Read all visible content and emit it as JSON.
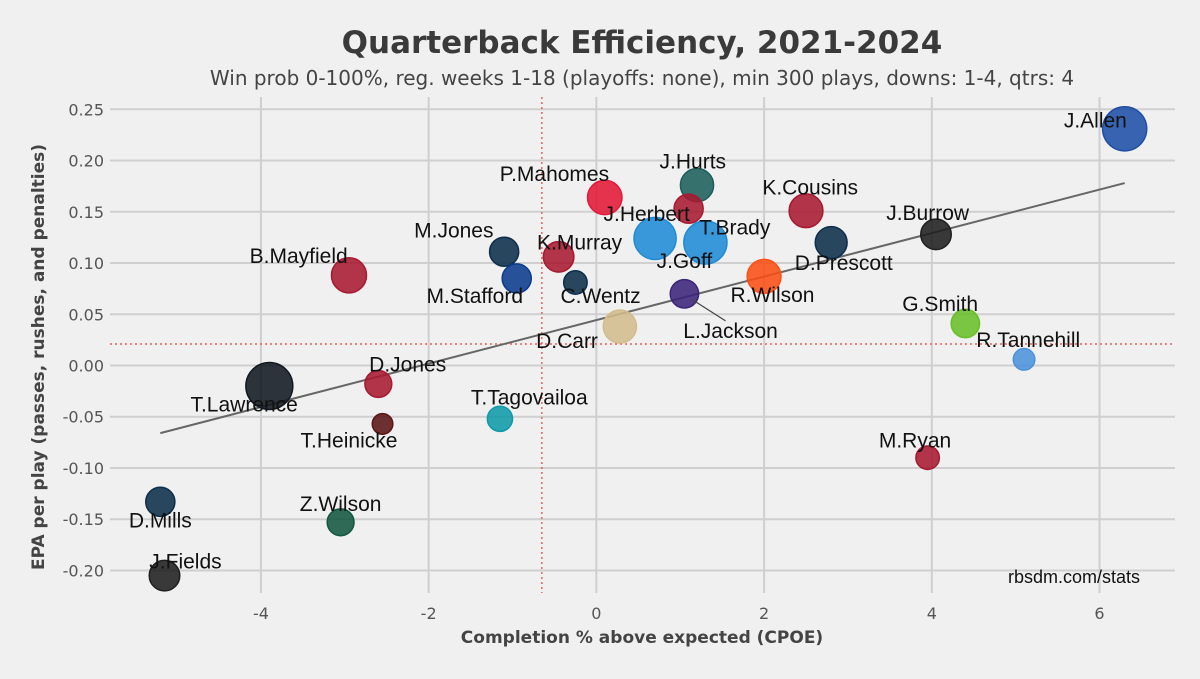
{
  "chart_data": {
    "type": "scatter",
    "title": "Quarterback Efficiency, 2021-2024",
    "subtitle": "Win prob 0-100%, reg. weeks 1-18 (playoffs: none), min 300 plays, downs: 1-4, qtrs: 4",
    "xlabel": "Completion % above expected (CPOE)",
    "ylabel": "EPA per play (passes, rushes, and penalties)",
    "xlim": [
      -5.8,
      6.9
    ],
    "ylim": [
      -0.222,
      0.262
    ],
    "xticks": [
      -4,
      -2,
      0,
      2,
      4,
      6
    ],
    "yticks": [
      0.25,
      0.2,
      0.15,
      0.1,
      0.05,
      0.0,
      -0.05,
      -0.1,
      -0.15,
      -0.2
    ],
    "ytick_labels": [
      "0.25",
      "0.20",
      "0.15",
      "0.10",
      "0.05",
      "0.00",
      "-0.05",
      "-0.10",
      "-0.15",
      "-0.20"
    ],
    "grid": true,
    "reference_lines": {
      "x": -0.65,
      "y": 0.021,
      "style": "red dotted"
    },
    "trend_line": {
      "x": [
        -5.2,
        6.3
      ],
      "y": [
        -0.066,
        0.178
      ]
    },
    "source_note": "rbsdm.com/stats",
    "points": [
      {
        "name": "J.Allen",
        "x": 6.3,
        "y": 0.231,
        "plays": 2300,
        "color": "#1e4ea6"
      },
      {
        "name": "J.Hurts",
        "x": 1.2,
        "y": 0.176,
        "plays": 1300,
        "color": "#1b5e5a"
      },
      {
        "name": "P.Mahomes",
        "x": 0.1,
        "y": 0.164,
        "plays": 1400,
        "color": "#e31837"
      },
      {
        "name": "K.Cousins",
        "x": 2.5,
        "y": 0.151,
        "plays": 1350,
        "color": "#a71930"
      },
      {
        "name": "J.Herbert",
        "x": 1.1,
        "y": 0.153,
        "plays": 1000,
        "color": "#a71930"
      },
      {
        "name": "J.Herbert-team",
        "x": 0.7,
        "y": 0.124,
        "plays": 2100,
        "color": "#1e8bd6"
      },
      {
        "name": "T.Brady",
        "x": 1.3,
        "y": 0.12,
        "plays": 2200,
        "color": "#1e8bd6"
      },
      {
        "name": "J.Burrow",
        "x": 4.05,
        "y": 0.128,
        "plays": 1100,
        "color": "#1f1f1f"
      },
      {
        "name": "D.Prescott",
        "x": 2.8,
        "y": 0.12,
        "plays": 1200,
        "color": "#0d2d4a"
      },
      {
        "name": "M.Jones",
        "x": -1.1,
        "y": 0.111,
        "plays": 1000,
        "color": "#0d2d4a"
      },
      {
        "name": "K.Murray",
        "x": -0.45,
        "y": 0.106,
        "plays": 1100,
        "color": "#a71930"
      },
      {
        "name": "B.Mayfield",
        "x": -2.95,
        "y": 0.088,
        "plays": 1450,
        "color": "#a71930"
      },
      {
        "name": "M.Stafford",
        "x": -0.95,
        "y": 0.085,
        "plays": 1000,
        "color": "#0a3b8c"
      },
      {
        "name": "C.Wentz",
        "x": -0.25,
        "y": 0.081,
        "plays": 650,
        "color": "#0d2d4a"
      },
      {
        "name": "J.Goff",
        "x": 1.05,
        "y": 0.07,
        "plays": 950,
        "color": "#3b2479"
      },
      {
        "name": "R.Wilson",
        "x": 2.0,
        "y": 0.087,
        "plays": 1350,
        "color": "#fb4f14"
      },
      {
        "name": "G.Smith",
        "x": 4.4,
        "y": 0.041,
        "plays": 950,
        "color": "#69be28"
      },
      {
        "name": "D.Carr",
        "x": 0.28,
        "y": 0.038,
        "plays": 1300,
        "color": "#d3bc8d"
      },
      {
        "name": "R.Tannehill",
        "x": 5.1,
        "y": 0.006,
        "plays": 550,
        "color": "#4b92db"
      },
      {
        "name": "D.Jones",
        "x": -2.6,
        "y": -0.018,
        "plays": 850,
        "color": "#a71930"
      },
      {
        "name": "T.Lawrence",
        "x": -3.9,
        "y": -0.02,
        "plays": 2600,
        "color": "#101820"
      },
      {
        "name": "T.Heinicke",
        "x": -2.55,
        "y": -0.057,
        "plays": 500,
        "color": "#5a1414"
      },
      {
        "name": "T.Tagovailoa",
        "x": -1.15,
        "y": -0.052,
        "plays": 750,
        "color": "#0f9aa8"
      },
      {
        "name": "M.Ryan",
        "x": 3.95,
        "y": -0.09,
        "plays": 650,
        "color": "#a71930"
      },
      {
        "name": "D.Mills",
        "x": -5.2,
        "y": -0.133,
        "plays": 1000,
        "color": "#0d2d4a"
      },
      {
        "name": "Z.Wilson",
        "x": -3.05,
        "y": -0.153,
        "plays": 850,
        "color": "#125740"
      },
      {
        "name": "J.Fields",
        "x": -5.15,
        "y": -0.205,
        "plays": 1100,
        "color": "#1f1f1f"
      }
    ],
    "labels": [
      {
        "text": "J.Allen",
        "x": 5.95,
        "y": 0.232
      },
      {
        "text": "J.Hurts",
        "x": 1.15,
        "y": 0.192
      },
      {
        "text": "P.Mahomes",
        "x": -0.5,
        "y": 0.18
      },
      {
        "text": "K.Cousins",
        "x": 2.55,
        "y": 0.167
      },
      {
        "text": "J.Herbert",
        "x": 0.6,
        "y": 0.141
      },
      {
        "text": "T.Brady",
        "x": 1.65,
        "y": 0.128
      },
      {
        "text": "J.Burrow",
        "x": 3.95,
        "y": 0.142
      },
      {
        "text": "D.Prescott",
        "x": 2.95,
        "y": 0.093
      },
      {
        "text": "M.Jones",
        "x": -1.7,
        "y": 0.125
      },
      {
        "text": "K.Murray",
        "x": -0.2,
        "y": 0.113
      },
      {
        "text": "B.Mayfield",
        "x": -3.55,
        "y": 0.1
      },
      {
        "text": "M.Stafford",
        "x": -1.45,
        "y": 0.061
      },
      {
        "text": "C.Wentz",
        "x": 0.05,
        "y": 0.061
      },
      {
        "text": "J.Goff",
        "x": 1.05,
        "y": 0.095
      },
      {
        "text": "R.Wilson",
        "x": 2.1,
        "y": 0.062
      },
      {
        "text": "L.Jackson",
        "x": 1.6,
        "y": 0.027
      },
      {
        "text": "G.Smith",
        "x": 4.1,
        "y": 0.053
      },
      {
        "text": "D.Carr",
        "x": -0.35,
        "y": 0.017
      },
      {
        "text": "R.Tannehill",
        "x": 5.15,
        "y": 0.018
      },
      {
        "text": "D.Jones",
        "x": -2.25,
        "y": -0.006
      },
      {
        "text": "T.Lawrence",
        "x": -4.2,
        "y": -0.045
      },
      {
        "text": "T.Heinicke",
        "x": -2.95,
        "y": -0.08
      },
      {
        "text": "T.Tagovailoa",
        "x": -0.8,
        "y": -0.038
      },
      {
        "text": "M.Ryan",
        "x": 3.8,
        "y": -0.08
      },
      {
        "text": "D.Mills",
        "x": -5.2,
        "y": -0.158
      },
      {
        "text": "Z.Wilson",
        "x": -3.05,
        "y": -0.142
      },
      {
        "text": "J.Fields",
        "x": -4.9,
        "y": -0.198
      }
    ],
    "connector": {
      "from_label": "L.Jackson",
      "to_point": "J.Goff"
    }
  }
}
